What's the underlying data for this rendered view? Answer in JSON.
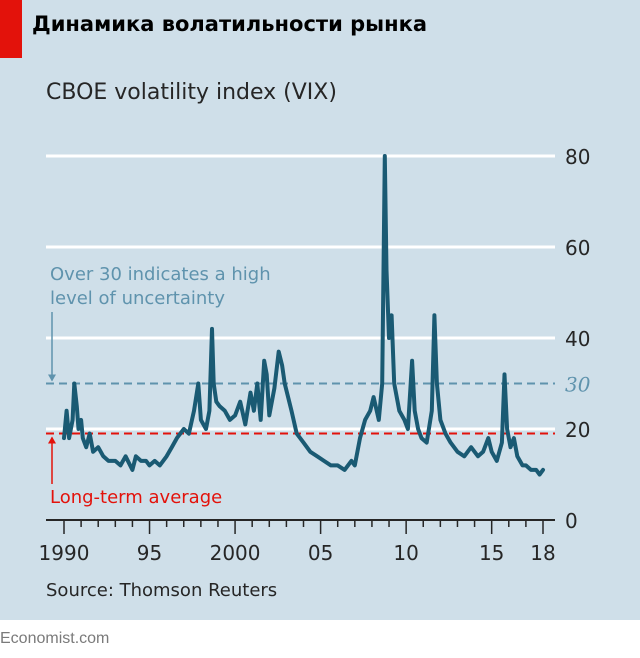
{
  "headline": "Динамика волатильности рынка",
  "footer": "Economist.com",
  "colors": {
    "panel_background": "#cfdfe9",
    "brand_red": "#e3120b",
    "line": "#1a5a73",
    "threshold_blue": "#5f93ad",
    "average_red": "#e3120b",
    "gridline": "#ffffff"
  },
  "chart_data": {
    "type": "line",
    "title": "CBOE volatility index (VIX)",
    "source": "Source: Thomson Reuters",
    "xlabel": "",
    "ylabel": "",
    "xlim": [
      1990,
      2018
    ],
    "ylim": [
      0,
      80
    ],
    "grid": true,
    "y_ticks": [
      0,
      20,
      40,
      60,
      80
    ],
    "y_tick_labels": [
      "0",
      "20",
      "40",
      "60",
      "80"
    ],
    "x_ticks": [
      1990,
      1995,
      2000,
      2005,
      2010,
      2015,
      2018
    ],
    "x_tick_labels": [
      "1990",
      "95",
      "2000",
      "05",
      "10",
      "15",
      "18"
    ],
    "reference_lines": [
      {
        "value": 30,
        "label": "30",
        "annotation": "Over 30 indicates a high level of uncertainty",
        "color": "#5f93ad",
        "style": "dashed"
      },
      {
        "value": 19,
        "label": "",
        "annotation": "Long-term average",
        "color": "#e3120b",
        "style": "dashed"
      }
    ],
    "series": [
      {
        "x": [
          1990.0,
          1990.15,
          1990.3,
          1990.5,
          1990.6,
          1990.75,
          1990.85,
          1991.0,
          1991.1,
          1991.3,
          1991.5,
          1991.7,
          1992.0,
          1992.3,
          1992.6,
          1993.0,
          1993.3,
          1993.6,
          1994.0,
          1994.2,
          1994.5,
          1994.8,
          1995.0,
          1995.3,
          1995.6,
          1996.0,
          1996.3,
          1996.6,
          1997.0,
          1997.3,
          1997.6,
          1997.85,
          1998.0,
          1998.3,
          1998.5,
          1998.65,
          1998.75,
          1998.9,
          1999.1,
          1999.4,
          1999.7,
          2000.0,
          2000.3,
          2000.6,
          2000.9,
          2001.1,
          2001.3,
          2001.5,
          2001.7,
          2001.85,
          2002.0,
          2002.3,
          2002.55,
          2002.75,
          2002.9,
          2003.1,
          2003.3,
          2003.6,
          2004.0,
          2004.4,
          2004.8,
          2005.2,
          2005.6,
          2006.0,
          2006.4,
          2006.8,
          2007.0,
          2007.3,
          2007.6,
          2007.9,
          2008.1,
          2008.4,
          2008.6,
          2008.75,
          2008.85,
          2009.0,
          2009.15,
          2009.3,
          2009.6,
          2009.9,
          2010.1,
          2010.35,
          2010.5,
          2010.7,
          2010.9,
          2011.2,
          2011.5,
          2011.65,
          2011.8,
          2012.0,
          2012.3,
          2012.6,
          2013.0,
          2013.4,
          2013.8,
          2014.2,
          2014.5,
          2014.8,
          2015.0,
          2015.3,
          2015.6,
          2015.75,
          2015.9,
          2016.1,
          2016.3,
          2016.5,
          2016.8,
          2017.0,
          2017.3,
          2017.6,
          2017.8,
          2018.0
        ],
        "values": [
          18,
          24,
          18,
          22,
          30,
          25,
          20,
          22,
          18,
          16,
          19,
          15,
          16,
          14,
          13,
          13,
          12,
          14,
          11,
          14,
          13,
          13,
          12,
          13,
          12,
          14,
          16,
          18,
          20,
          19,
          24,
          30,
          22,
          20,
          24,
          42,
          30,
          26,
          25,
          24,
          22,
          23,
          26,
          21,
          28,
          24,
          30,
          22,
          35,
          32,
          23,
          29,
          37,
          34,
          30,
          27,
          24,
          19,
          17,
          15,
          14,
          13,
          12,
          12,
          11,
          13,
          12,
          18,
          22,
          24,
          27,
          22,
          30,
          80,
          55,
          40,
          45,
          30,
          24,
          22,
          20,
          35,
          24,
          20,
          18,
          17,
          24,
          45,
          30,
          22,
          19,
          17,
          15,
          14,
          16,
          14,
          15,
          18,
          15,
          13,
          17,
          32,
          20,
          16,
          18,
          14,
          12,
          12,
          11,
          11,
          10,
          11
        ]
      }
    ]
  }
}
